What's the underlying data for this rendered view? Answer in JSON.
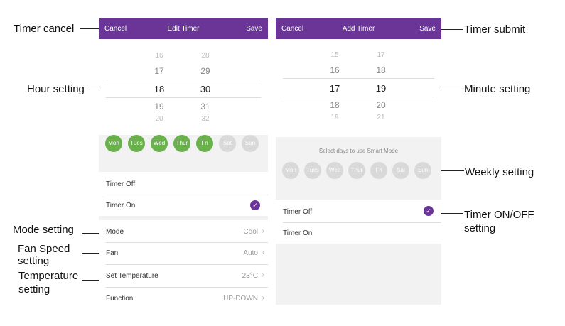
{
  "callouts": {
    "timer_cancel": "Timer cancel",
    "hour_setting": "Hour setting",
    "mode_setting": "Mode setting",
    "fan_speed_line1": "Fan Speed",
    "fan_speed_line2": "setting",
    "temperature_line1": "Temperature",
    "temperature_line2": "setting",
    "timer_submit": "Timer submit",
    "minute_setting": "Minute setting",
    "weekly_setting": "Weekly setting",
    "timer_onoff_line1": "Timer ON/OFF",
    "timer_onoff_line2": "setting"
  },
  "left_screen": {
    "header": {
      "cancel": "Cancel",
      "title": "Edit Timer",
      "save": "Save"
    },
    "hours": [
      "16",
      "17",
      "18",
      "19",
      "20"
    ],
    "minutes": [
      "28",
      "29",
      "30",
      "31",
      "32"
    ],
    "days": [
      {
        "label": "Mon",
        "selected": true
      },
      {
        "label": "Tues",
        "selected": true
      },
      {
        "label": "Wed",
        "selected": true
      },
      {
        "label": "Thur",
        "selected": true
      },
      {
        "label": "Fri",
        "selected": true
      },
      {
        "label": "Sat",
        "selected": false
      },
      {
        "label": "Sun",
        "selected": false
      }
    ],
    "timer_off": "Timer Off",
    "timer_on": "Timer On",
    "selected_timer": "Timer On",
    "mode_label": "Mode",
    "mode_value": "Cool",
    "fan_label": "Fan",
    "fan_value": "Auto",
    "temp_label": "Set Temperature",
    "temp_value": "23°C",
    "function_label": "Function",
    "function_value": "UP-DOWN"
  },
  "right_screen": {
    "header": {
      "cancel": "Cancel",
      "title": "Add Timer",
      "save": "Save"
    },
    "hours": [
      "15",
      "16",
      "17",
      "18",
      "19"
    ],
    "minutes": [
      "17",
      "18",
      "19",
      "20",
      "21"
    ],
    "days_prompt": "Select days to use Smart Mode",
    "days": [
      {
        "label": "Mon",
        "selected": false
      },
      {
        "label": "Tues",
        "selected": false
      },
      {
        "label": "Wed",
        "selected": false
      },
      {
        "label": "Thur",
        "selected": false
      },
      {
        "label": "Fri",
        "selected": false
      },
      {
        "label": "Sat",
        "selected": false
      },
      {
        "label": "Sun",
        "selected": false
      }
    ],
    "timer_off": "Timer Off",
    "timer_on": "Timer On",
    "selected_timer": "Timer Off"
  },
  "colors": {
    "accent": "#6a3597",
    "day_selected": "#6ab04c",
    "day_unselected": "#d9d9d9"
  },
  "icons": {
    "chevron": "chevron-right-icon",
    "check": "check-circle-icon"
  }
}
